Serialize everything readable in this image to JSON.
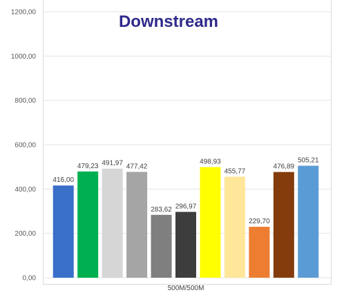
{
  "chart_data": {
    "type": "bar",
    "title": "Downstream",
    "categories": [
      "500M/500M"
    ],
    "xlabel": "",
    "ylabel": "",
    "ylim": [
      0,
      1200
    ],
    "y_ticks": [
      "0,00",
      "200,00",
      "400,00",
      "600,00",
      "800,00",
      "1000,00",
      "1200,00"
    ],
    "grid": true,
    "legend": "none",
    "series": [
      {
        "values": [
          416.0
        ],
        "label": "416,00",
        "color": "#3a6fc9"
      },
      {
        "values": [
          479.23
        ],
        "label": "479,23",
        "color": "#00b050"
      },
      {
        "values": [
          491.97
        ],
        "label": "491,97",
        "color": "#d6d6d6"
      },
      {
        "values": [
          477.42
        ],
        "label": "477,42",
        "color": "#a5a5a5"
      },
      {
        "values": [
          283.62
        ],
        "label": "283,62",
        "color": "#7f7f7f"
      },
      {
        "values": [
          296.97
        ],
        "label": "296,97",
        "color": "#3d3d3d"
      },
      {
        "values": [
          498.93
        ],
        "label": "498,93",
        "color": "#ffff00"
      },
      {
        "values": [
          455.77
        ],
        "label": "455,77",
        "color": "#ffe699"
      },
      {
        "values": [
          229.7
        ],
        "label": "229,70",
        "color": "#ed7d31"
      },
      {
        "values": [
          476.89
        ],
        "label": "476,89",
        "color": "#843c0c"
      },
      {
        "values": [
          505.21
        ],
        "label": "505,21",
        "color": "#5b9bd5"
      }
    ]
  }
}
